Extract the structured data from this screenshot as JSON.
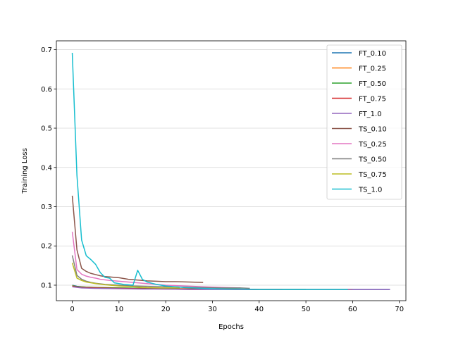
{
  "chart_data": {
    "type": "line",
    "title": "",
    "xlabel": "Epochs",
    "ylabel": "Training Loss",
    "xlim": [
      -3.4,
      71.4
    ],
    "ylim": [
      0.0605,
      0.7225
    ],
    "xticks": [
      0,
      10,
      20,
      30,
      40,
      50,
      60,
      70
    ],
    "yticks": [
      0.1,
      0.2,
      0.3,
      0.4,
      0.5,
      0.6,
      0.7
    ],
    "grid": "horizontal",
    "legend_position": "top-right",
    "series": [
      {
        "name": "FT_0.10",
        "color": "#1f77b4",
        "points": [
          [
            0,
            0.1
          ],
          [
            1,
            0.097
          ],
          [
            2,
            0.096
          ],
          [
            3,
            0.095
          ],
          [
            5,
            0.094
          ],
          [
            8,
            0.093
          ],
          [
            12,
            0.092
          ],
          [
            16,
            0.091
          ],
          [
            20,
            0.091
          ],
          [
            25,
            0.09
          ],
          [
            30,
            0.09
          ],
          [
            35,
            0.09
          ],
          [
            40,
            0.089
          ],
          [
            45,
            0.089
          ],
          [
            50,
            0.089
          ],
          [
            55,
            0.089
          ],
          [
            60,
            0.089
          ],
          [
            65,
            0.089
          ],
          [
            68,
            0.089
          ]
        ]
      },
      {
        "name": "FT_0.25",
        "color": "#ff7f0e",
        "points": [
          [
            0,
            0.099
          ],
          [
            1,
            0.096
          ],
          [
            3,
            0.095
          ],
          [
            6,
            0.094
          ],
          [
            10,
            0.093
          ],
          [
            15,
            0.092
          ],
          [
            20,
            0.091
          ],
          [
            25,
            0.091
          ],
          [
            30,
            0.09
          ],
          [
            35,
            0.09
          ],
          [
            40,
            0.089
          ],
          [
            45,
            0.089
          ],
          [
            50,
            0.089
          ],
          [
            55,
            0.089
          ],
          [
            60,
            0.089
          ]
        ]
      },
      {
        "name": "FT_0.50",
        "color": "#2ca02c",
        "points": [
          [
            0,
            0.098
          ],
          [
            2,
            0.095
          ],
          [
            5,
            0.094
          ],
          [
            10,
            0.093
          ],
          [
            15,
            0.092
          ],
          [
            20,
            0.091
          ],
          [
            25,
            0.09
          ],
          [
            30,
            0.09
          ],
          [
            35,
            0.09
          ],
          [
            40,
            0.089
          ],
          [
            45,
            0.089
          ],
          [
            50,
            0.089
          ]
        ]
      },
      {
        "name": "FT_0.75",
        "color": "#d62728",
        "points": [
          [
            0,
            0.097
          ],
          [
            2,
            0.094
          ],
          [
            5,
            0.093
          ],
          [
            10,
            0.092
          ],
          [
            15,
            0.091
          ],
          [
            20,
            0.09
          ],
          [
            25,
            0.09
          ],
          [
            30,
            0.09
          ],
          [
            35,
            0.089
          ],
          [
            40,
            0.089
          ],
          [
            45,
            0.089
          ]
        ]
      },
      {
        "name": "FT_1.0",
        "color": "#9467bd",
        "points": [
          [
            0,
            0.096
          ],
          [
            2,
            0.093
          ],
          [
            5,
            0.092
          ],
          [
            10,
            0.091
          ],
          [
            15,
            0.09
          ],
          [
            20,
            0.09
          ],
          [
            25,
            0.089
          ],
          [
            30,
            0.089
          ],
          [
            35,
            0.089
          ],
          [
            40,
            0.089
          ],
          [
            45,
            0.089
          ],
          [
            50,
            0.089
          ],
          [
            55,
            0.089
          ],
          [
            60,
            0.089
          ],
          [
            65,
            0.089
          ],
          [
            68,
            0.089
          ]
        ]
      },
      {
        "name": "TS_0.10",
        "color": "#8c564b",
        "points": [
          [
            0,
            0.328
          ],
          [
            1,
            0.19
          ],
          [
            2,
            0.143
          ],
          [
            3,
            0.135
          ],
          [
            4,
            0.13
          ],
          [
            5,
            0.127
          ],
          [
            6,
            0.124
          ],
          [
            7,
            0.122
          ],
          [
            8,
            0.121
          ],
          [
            9,
            0.12
          ],
          [
            10,
            0.119
          ],
          [
            11,
            0.117
          ],
          [
            12,
            0.115
          ],
          [
            13,
            0.114
          ],
          [
            14,
            0.113
          ],
          [
            15,
            0.112
          ],
          [
            16,
            0.111
          ],
          [
            18,
            0.11
          ],
          [
            20,
            0.109
          ],
          [
            22,
            0.109
          ],
          [
            25,
            0.108
          ],
          [
            28,
            0.107
          ]
        ]
      },
      {
        "name": "TS_0.25",
        "color": "#e377c2",
        "points": [
          [
            0,
            0.236
          ],
          [
            1,
            0.14
          ],
          [
            2,
            0.128
          ],
          [
            3,
            0.123
          ],
          [
            4,
            0.12
          ],
          [
            5,
            0.118
          ],
          [
            6,
            0.115
          ],
          [
            8,
            0.112
          ],
          [
            10,
            0.11
          ],
          [
            12,
            0.108
          ],
          [
            14,
            0.106
          ],
          [
            16,
            0.104
          ],
          [
            18,
            0.102
          ],
          [
            20,
            0.1
          ],
          [
            22,
            0.099
          ],
          [
            24,
            0.098
          ],
          [
            26,
            0.097
          ],
          [
            28,
            0.096
          ],
          [
            30,
            0.095
          ],
          [
            33,
            0.094
          ],
          [
            36,
            0.093
          ]
        ]
      },
      {
        "name": "TS_0.50",
        "color": "#7f7f7f",
        "points": [
          [
            0,
            0.176
          ],
          [
            1,
            0.125
          ],
          [
            2,
            0.115
          ],
          [
            3,
            0.11
          ],
          [
            4,
            0.107
          ],
          [
            5,
            0.105
          ],
          [
            7,
            0.102
          ],
          [
            10,
            0.1
          ],
          [
            13,
            0.098
          ],
          [
            16,
            0.097
          ],
          [
            20,
            0.096
          ],
          [
            24,
            0.095
          ],
          [
            28,
            0.094
          ],
          [
            32,
            0.093
          ],
          [
            36,
            0.093
          ],
          [
            38,
            0.092
          ]
        ]
      },
      {
        "name": "TS_0.75",
        "color": "#bcbd22",
        "points": [
          [
            0,
            0.157
          ],
          [
            1,
            0.118
          ],
          [
            2,
            0.112
          ],
          [
            3,
            0.108
          ],
          [
            5,
            0.104
          ],
          [
            7,
            0.101
          ],
          [
            10,
            0.098
          ],
          [
            13,
            0.096
          ],
          [
            16,
            0.094
          ],
          [
            19,
            0.093
          ],
          [
            23,
            0.093
          ]
        ]
      },
      {
        "name": "TS_1.0",
        "color": "#17becf",
        "points": [
          [
            0,
            0.692
          ],
          [
            1,
            0.38
          ],
          [
            2,
            0.215
          ],
          [
            3,
            0.175
          ],
          [
            4,
            0.165
          ],
          [
            5,
            0.153
          ],
          [
            6,
            0.132
          ],
          [
            7,
            0.12
          ],
          [
            8,
            0.118
          ],
          [
            9,
            0.106
          ],
          [
            10,
            0.104
          ],
          [
            11,
            0.102
          ],
          [
            12,
            0.101
          ],
          [
            13,
            0.1
          ],
          [
            14,
            0.138
          ],
          [
            15,
            0.115
          ],
          [
            16,
            0.108
          ],
          [
            17,
            0.105
          ],
          [
            18,
            0.102
          ],
          [
            19,
            0.1
          ],
          [
            20,
            0.098
          ],
          [
            22,
            0.096
          ],
          [
            24,
            0.094
          ],
          [
            26,
            0.093
          ],
          [
            28,
            0.092
          ],
          [
            30,
            0.091
          ],
          [
            33,
            0.09
          ],
          [
            36,
            0.09
          ],
          [
            40,
            0.089
          ],
          [
            45,
            0.089
          ],
          [
            50,
            0.089
          ],
          [
            55,
            0.089
          ],
          [
            59,
            0.089
          ]
        ]
      }
    ]
  }
}
